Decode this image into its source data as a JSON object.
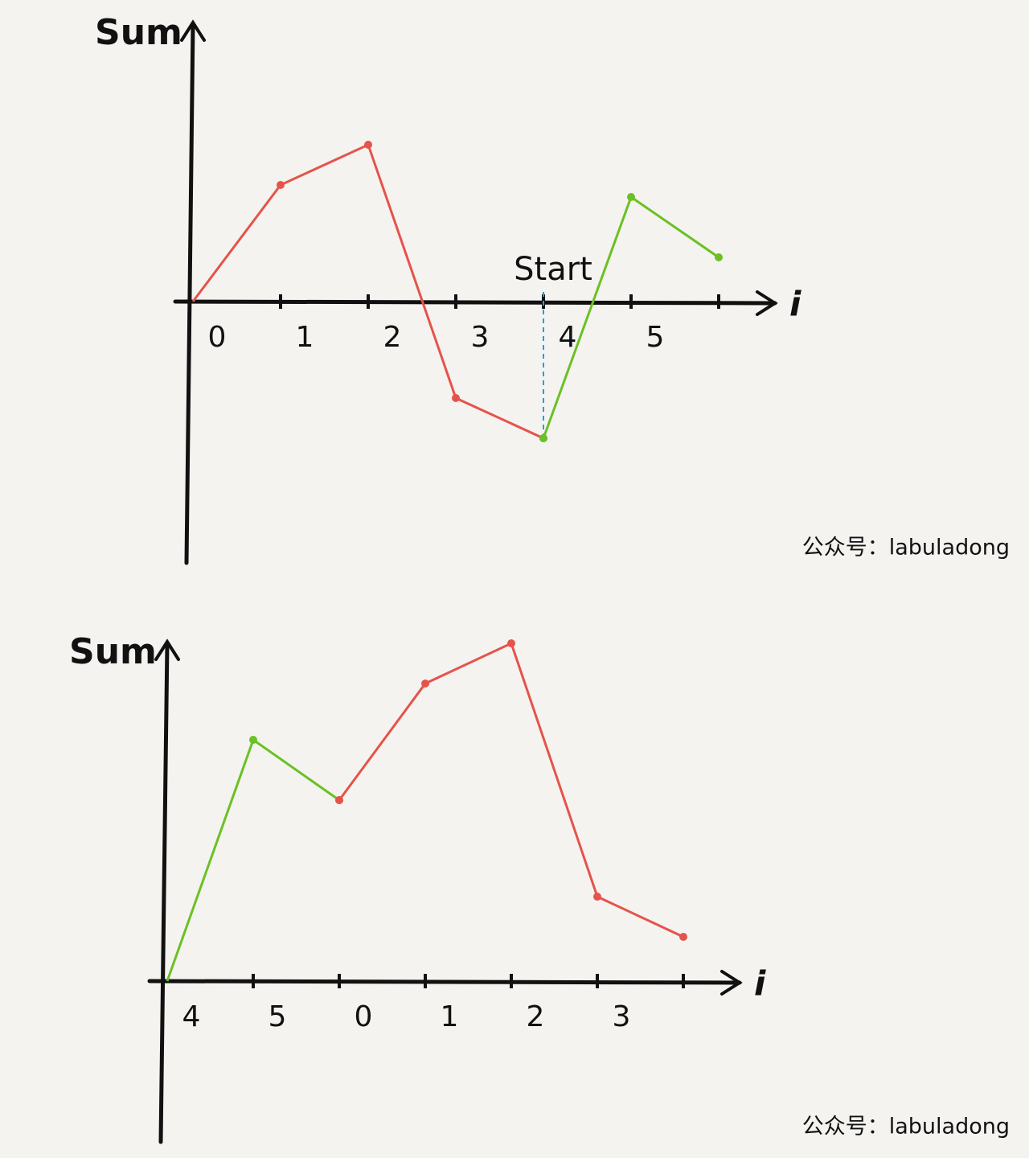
{
  "chart_data": [
    {
      "type": "line",
      "y_label": "Sum",
      "x_label": "i",
      "categories": [
        "0",
        "1",
        "2",
        "3",
        "4",
        "5",
        null
      ],
      "series": [
        {
          "color": "#e5534b",
          "values": [
            0,
            2.9,
            3.9,
            -2.4,
            -3.4,
            null,
            null
          ]
        },
        {
          "color": "#6cc024",
          "values": [
            null,
            null,
            null,
            null,
            -3.4,
            2.6,
            1.1
          ]
        }
      ],
      "ylim": [
        -6.5,
        7
      ],
      "annotation": {
        "text": "Start",
        "x": 4,
        "color": "#1ea0e6"
      },
      "credit": "公众号：labuladong"
    },
    {
      "type": "line",
      "y_label": "Sum",
      "x_label": "i",
      "categories": [
        "4",
        "5",
        "0",
        "1",
        "2",
        "3",
        null
      ],
      "series": [
        {
          "color": "#6cc024",
          "values": [
            0,
            6.0,
            4.5,
            null,
            null,
            null,
            null
          ]
        },
        {
          "color": "#e5534b",
          "values": [
            null,
            null,
            4.5,
            7.4,
            8.4,
            2.1,
            1.1
          ]
        }
      ],
      "ylim": [
        -4,
        8.5
      ],
      "credit": "公众号：labuladong"
    }
  ]
}
